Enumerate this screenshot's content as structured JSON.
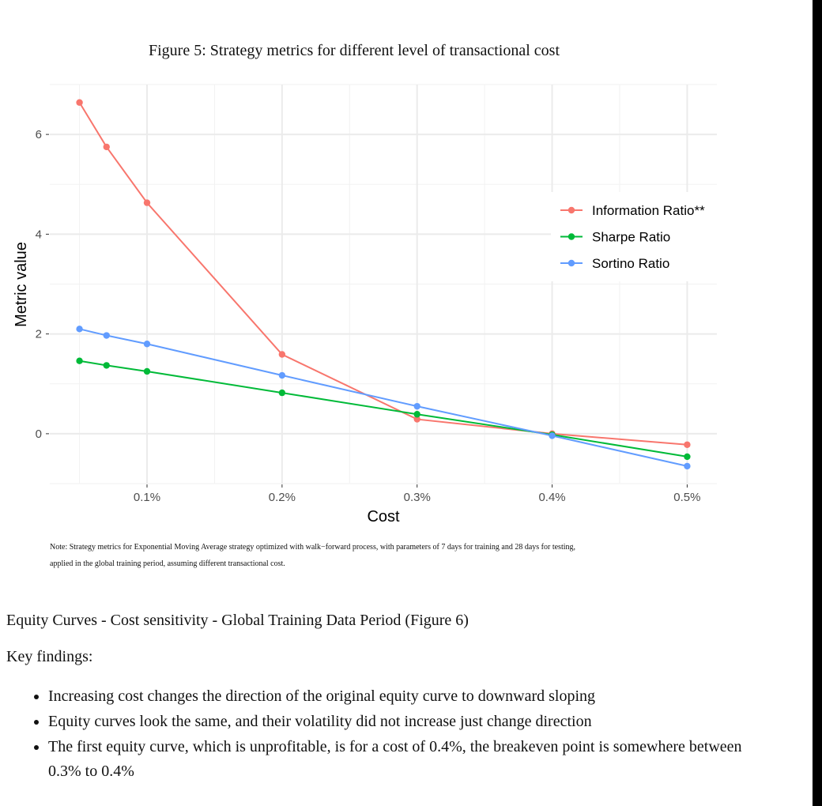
{
  "figure": {
    "title": "Figure 5: Strategy metrics for different level of transactional cost",
    "note_line1": "Note: Strategy metrics for Exponential Moving Average strategy optimized with walk−forward process, with parameters of 7 days for training and 28 days for testing,",
    "note_line2": "applied in the global training period, assuming different transactional cost."
  },
  "chart_data": {
    "type": "line",
    "title": "",
    "xlabel": "Cost",
    "ylabel": "Metric value",
    "x": [
      0.05,
      0.07,
      0.1,
      0.2,
      0.3,
      0.4,
      0.5
    ],
    "xlim": [
      0.028,
      0.522
    ],
    "ylim": [
      -1.0,
      7.0
    ],
    "x_ticks": [
      0.1,
      0.2,
      0.3,
      0.4,
      0.5
    ],
    "x_tick_labels": [
      "0.1%",
      "0.2%",
      "0.3%",
      "0.4%",
      "0.5%"
    ],
    "y_ticks": [
      0,
      2,
      4,
      6
    ],
    "y_tick_labels": [
      "0",
      "2",
      "4",
      "6"
    ],
    "grid": true,
    "legend_position": "right",
    "series": [
      {
        "name": "Information Ratio**",
        "color": "#F8766D",
        "values": [
          6.64,
          5.75,
          4.63,
          1.59,
          0.29,
          0.0,
          -0.22
        ]
      },
      {
        "name": "Sharpe Ratio",
        "color": "#00BA38",
        "values": [
          1.46,
          1.37,
          1.25,
          0.82,
          0.39,
          -0.02,
          -0.46
        ]
      },
      {
        "name": "Sortino Ratio",
        "color": "#619CFF",
        "values": [
          2.1,
          1.97,
          1.8,
          1.17,
          0.55,
          -0.04,
          -0.65
        ]
      }
    ]
  },
  "section": {
    "heading": "Equity Curves - Cost sensitivity - Global Training Data Period (Figure 6)",
    "key_findings_label": "Key findings:",
    "bullets": [
      "Increasing cost changes the direction of the original equity curve to downward sloping",
      "Equity curves look the same, and their volatility did not increase just change direction",
      "The first equity curve, which is unprofitable, is for a cost of 0.4%, the breakeven point is somewhere between 0.3% to 0.4%"
    ]
  }
}
